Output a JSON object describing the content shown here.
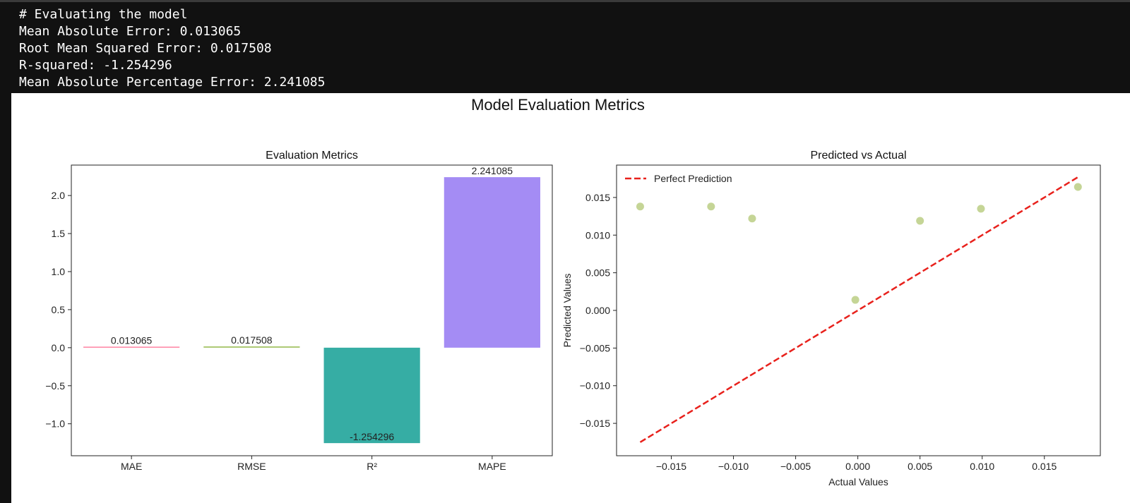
{
  "terminal": {
    "lines": [
      "# Evaluating the model",
      "Mean Absolute Error: 0.013065",
      "Root Mean Squared Error: 0.017508",
      "R-squared: -1.254296",
      "Mean Absolute Percentage Error: 2.241085"
    ]
  },
  "figure": {
    "suptitle": "Model Evaluation Metrics"
  },
  "chart_data": [
    {
      "type": "bar",
      "title": "Evaluation Metrics",
      "xlabel": "",
      "ylabel": "",
      "categories": [
        "MAE",
        "RMSE",
        "R²",
        "MAPE"
      ],
      "values": [
        0.013065,
        0.017508,
        -1.254296,
        2.241085
      ],
      "value_labels": [
        "0.013065",
        "0.017508",
        "-1.254296",
        "2.241085"
      ],
      "colors": [
        "#ff7b9c",
        "#a8c66c",
        "#36ada4",
        "#a48cf4"
      ],
      "ylim": [
        -1.42,
        2.4
      ],
      "yticks": [
        -1.0,
        -0.5,
        0.0,
        0.5,
        1.0,
        1.5,
        2.0
      ],
      "ytick_labels": [
        "−1.0",
        "−0.5",
        "0.0",
        "0.5",
        "1.0",
        "1.5",
        "2.0"
      ],
      "grid": false
    },
    {
      "type": "scatter",
      "title": "Predicted vs Actual",
      "xlabel": "Actual Values",
      "ylabel": "Predicted Values",
      "points": [
        {
          "x": -0.0175,
          "y": 0.0138
        },
        {
          "x": -0.0118,
          "y": 0.0138
        },
        {
          "x": -0.0085,
          "y": 0.0122
        },
        {
          "x": -0.0002,
          "y": 0.0014
        },
        {
          "x": 0.005,
          "y": 0.0119
        },
        {
          "x": 0.0099,
          "y": 0.0135
        },
        {
          "x": 0.0177,
          "y": 0.0164
        }
      ],
      "point_color": "#c5d596",
      "reference_line": {
        "name": "Perfect Prediction",
        "from": [
          -0.0175,
          -0.0175
        ],
        "to": [
          0.0177,
          0.0177
        ],
        "color": "#e8211c",
        "style": "dashed"
      },
      "xlim": [
        -0.0194,
        0.0195
      ],
      "ylim": [
        -0.0193,
        0.0193
      ],
      "xticks": [
        -0.015,
        -0.01,
        -0.005,
        0.0,
        0.005,
        0.01,
        0.015
      ],
      "xtick_labels": [
        "−0.015",
        "−0.010",
        "−0.005",
        "0.000",
        "0.005",
        "0.010",
        "0.015"
      ],
      "yticks": [
        -0.015,
        -0.01,
        -0.005,
        0.0,
        0.005,
        0.01,
        0.015
      ],
      "ytick_labels": [
        "−0.015",
        "−0.010",
        "−0.005",
        "0.000",
        "0.005",
        "0.010",
        "0.015"
      ],
      "legend": "top-left",
      "grid": false
    }
  ]
}
